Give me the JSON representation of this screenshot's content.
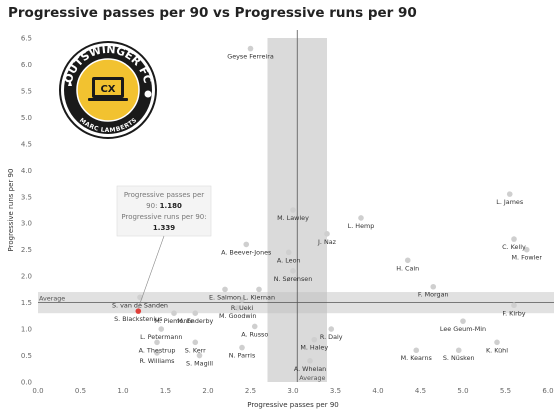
{
  "chart_data": {
    "type": "scatter",
    "title": "Progressive passes per 90 vs Progressive runs per 90",
    "xlabel": "Progressive passes per 90",
    "ylabel": "Progressive runs per 90",
    "xlim": [
      0,
      6.0
    ],
    "ylim": [
      0,
      6.5
    ],
    "xticks": [
      "0.0",
      "0.5",
      "1.0",
      "1.5",
      "2.0",
      "2.5",
      "3.0",
      "3.5",
      "4.0",
      "4.5",
      "5.0",
      "5.5",
      "6.0"
    ],
    "yticks": [
      "0.0",
      "0.5",
      "1.0",
      "1.5",
      "2.0",
      "2.5",
      "3.0",
      "3.5",
      "4.0",
      "4.5",
      "5.0",
      "5.5",
      "6.0",
      "6.5"
    ],
    "grid": false,
    "average_x": 3.05,
    "average_y": 1.5,
    "average_label": "Average",
    "points": [
      {
        "label": "Geyse Ferreira",
        "x": 2.5,
        "y": 6.3
      },
      {
        "label": "L. James",
        "x": 5.55,
        "y": 3.55
      },
      {
        "label": "M. Lawley",
        "x": 3.0,
        "y": 3.25
      },
      {
        "label": "L. Hemp",
        "x": 3.8,
        "y": 3.1
      },
      {
        "label": "J. Naz",
        "x": 3.4,
        "y": 2.8
      },
      {
        "label": "C. Kelly",
        "x": 5.6,
        "y": 2.7
      },
      {
        "label": "M. Fowler",
        "x": 5.75,
        "y": 2.5
      },
      {
        "label": "A. Beever-Jones",
        "x": 2.45,
        "y": 2.6
      },
      {
        "label": "A. Leon",
        "x": 2.95,
        "y": 2.45
      },
      {
        "label": "H. Cain",
        "x": 4.35,
        "y": 2.3
      },
      {
        "label": "N. Sørensen",
        "x": 3.0,
        "y": 2.1
      },
      {
        "label": "E. Salmon",
        "x": 2.2,
        "y": 1.75
      },
      {
        "label": "L. Kiernan",
        "x": 2.6,
        "y": 1.75
      },
      {
        "label": "F. Morgan",
        "x": 4.65,
        "y": 1.8
      },
      {
        "label": "S. van de Sanden",
        "x": 1.2,
        "y": 1.6
      },
      {
        "label": "R. Ueki",
        "x": 2.4,
        "y": 1.55
      },
      {
        "label": "S. Blackstenius",
        "x": 1.18,
        "y": 1.339,
        "highlight": true
      },
      {
        "label": "M. Goodwin",
        "x": 2.35,
        "y": 1.4
      },
      {
        "label": "F. Kirby",
        "x": 5.6,
        "y": 1.45
      },
      {
        "label": "M. Piemonte",
        "x": 1.6,
        "y": 1.3
      },
      {
        "label": "M. Enderby",
        "x": 1.85,
        "y": 1.3
      },
      {
        "label": "Lee Geum-Min",
        "x": 5.0,
        "y": 1.15
      },
      {
        "label": "L. Petermann",
        "x": 1.45,
        "y": 1.0
      },
      {
        "label": "A. Russo",
        "x": 2.55,
        "y": 1.05
      },
      {
        "label": "R. Daly",
        "x": 3.45,
        "y": 1.0
      },
      {
        "label": "A. Thestrup",
        "x": 1.4,
        "y": 0.75
      },
      {
        "label": "S. Kerr",
        "x": 1.85,
        "y": 0.75
      },
      {
        "label": "M. Haley",
        "x": 3.25,
        "y": 0.8
      },
      {
        "label": "K. Kühl",
        "x": 5.4,
        "y": 0.75
      },
      {
        "label": "R. Williams",
        "x": 1.4,
        "y": 0.55
      },
      {
        "label": "N. Parris",
        "x": 2.4,
        "y": 0.65
      },
      {
        "label": "S. Magill",
        "x": 1.9,
        "y": 0.5
      },
      {
        "label": "M. Kearns",
        "x": 4.45,
        "y": 0.6
      },
      {
        "label": "S. Nüsken",
        "x": 4.95,
        "y": 0.6
      },
      {
        "label": "A. Whelan",
        "x": 3.2,
        "y": 0.4
      }
    ],
    "tooltip": {
      "line1": "Progressive passes per",
      "line2_prefix": "90:",
      "line2_value": "1.180",
      "line3": "Progressive runs per 90:",
      "line4_value": "1.339"
    },
    "colors": {
      "point": "#cfcfcf",
      "highlight": "#e0403a",
      "average_band": "#bcbcbc",
      "axis_line": "#555555"
    }
  },
  "logo": {
    "text_top": "OUTSWINGER FC",
    "text_bottom": "MARC LAMBERTS",
    "badge": "CX",
    "ring_color": "#1a1a1a",
    "inner_color": "#f2c230"
  }
}
